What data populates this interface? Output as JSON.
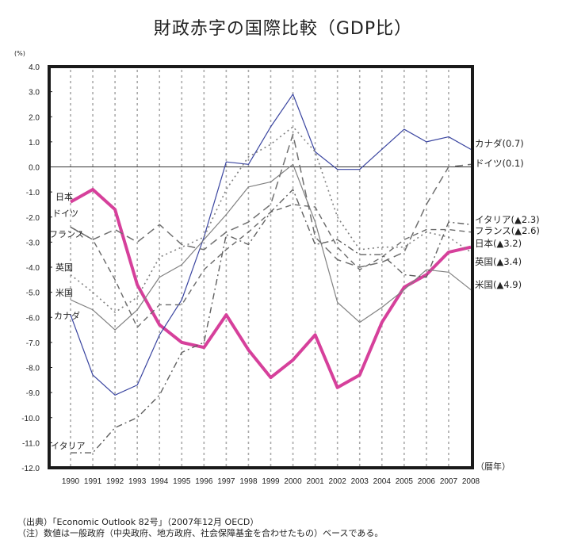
{
  "title": "財政赤字の国際比較（GDP比）",
  "notes": {
    "source": "（出典）「Economic Outlook 82号」（2007年12月 OECD）",
    "note": "（注）数値は一般政府（中央政府、地方政府、社会保障基金を合わせたもの）ベースである。"
  },
  "chart_data": {
    "type": "line",
    "title": "財政赤字の国際比較（GDP比）",
    "ylabel": "(%)",
    "xlabel": "（暦年）",
    "ylim": [
      -12.0,
      4.0
    ],
    "yticks": [
      "4.0",
      "3.0",
      "2.0",
      "1.0",
      "0.0",
      "-1.0",
      "-2.0",
      "-3.0",
      "-4.0",
      "-5.0",
      "-6.0",
      "-7.0",
      "-8.0",
      "-9.0",
      "-10.0",
      "-11.0",
      "-12.0"
    ],
    "ytick_values": [
      4,
      3,
      2,
      1,
      0,
      -1,
      -2,
      -3,
      -4,
      -5,
      -6,
      -7,
      -8,
      -9,
      -10,
      -11,
      -12
    ],
    "x": [
      "1990",
      "1991",
      "1992",
      "1993",
      "1994",
      "1995",
      "1996",
      "1997",
      "1998",
      "1999",
      "2000",
      "2001",
      "2002",
      "2003",
      "2004",
      "2005",
      "2006",
      "2007",
      "2008"
    ],
    "grid": "vertical dotted",
    "series": [
      {
        "name": "日本",
        "end_label": "日本(▲3.2)",
        "color": "#d6409b",
        "style": "thick",
        "values": [
          -1.4,
          -0.9,
          -1.7,
          -4.7,
          -6.3,
          -7.0,
          -7.2,
          -5.9,
          -7.3,
          -8.4,
          -7.7,
          -6.7,
          -8.8,
          -8.3,
          -6.2,
          -4.8,
          -4.3,
          -3.4,
          -3.2
        ]
      },
      {
        "name": "カナダ",
        "end_label": "カナダ(0.7)",
        "color": "#3a45a0",
        "style": "solid",
        "values": [
          -5.9,
          -8.3,
          -9.1,
          -8.7,
          -6.7,
          -5.3,
          -2.8,
          0.2,
          0.1,
          1.6,
          2.9,
          0.6,
          -0.1,
          -0.1,
          0.7,
          1.5,
          1.0,
          1.2,
          0.7
        ]
      },
      {
        "name": "米国",
        "end_label": "米国(▲4.9)",
        "color": "#808080",
        "style": "solid",
        "values": [
          -5.3,
          -5.7,
          -6.5,
          -5.7,
          -4.4,
          -3.9,
          -2.9,
          -1.9,
          -0.8,
          -0.6,
          0.1,
          -2.2,
          -5.4,
          -6.2,
          -5.6,
          -4.9,
          -4.1,
          -4.2,
          -4.9
        ]
      },
      {
        "name": "ドイツ",
        "end_label": "ドイツ(0.1)",
        "color": "#707070",
        "style": "longdash",
        "values": [
          -2.4,
          -2.9,
          -2.5,
          -3.0,
          -2.3,
          -3.1,
          -3.3,
          -2.6,
          -2.2,
          -1.5,
          1.3,
          -2.8,
          -3.7,
          -4.0,
          -3.8,
          -3.4,
          -1.5,
          0.0,
          0.1
        ]
      },
      {
        "name": "フランス",
        "end_label": "フランス(▲2.6)",
        "color": "#6a6a6a",
        "style": "dash",
        "values": [
          -2.4,
          -2.9,
          -4.5,
          -6.4,
          -5.5,
          -5.5,
          -4.1,
          -3.3,
          -2.6,
          -1.8,
          -1.5,
          -1.6,
          -3.2,
          -4.1,
          -3.6,
          -2.9,
          -2.5,
          -2.5,
          -2.6
        ]
      },
      {
        "name": "英国",
        "end_label": "英国(▲3.4)",
        "color": "#808080",
        "style": "dot",
        "values": [
          -4.3,
          -5.0,
          -5.8,
          -5.2,
          -3.6,
          -3.2,
          -2.8,
          -0.9,
          0.4,
          0.9,
          1.6,
          0.6,
          -2.0,
          -3.3,
          -3.2,
          -3.2,
          -2.6,
          -2.8,
          -3.4
        ]
      },
      {
        "name": "イタリア",
        "end_label": "イタリア(▲2.3)",
        "color": "#606060",
        "style": "dashdot",
        "values": [
          -11.4,
          -11.4,
          -10.4,
          -10.0,
          -9.1,
          -7.4,
          -7.0,
          -2.7,
          -3.1,
          -1.8,
          -0.9,
          -3.1,
          -2.9,
          -3.5,
          -3.5,
          -4.3,
          -4.4,
          -2.2,
          -2.3
        ]
      }
    ]
  }
}
